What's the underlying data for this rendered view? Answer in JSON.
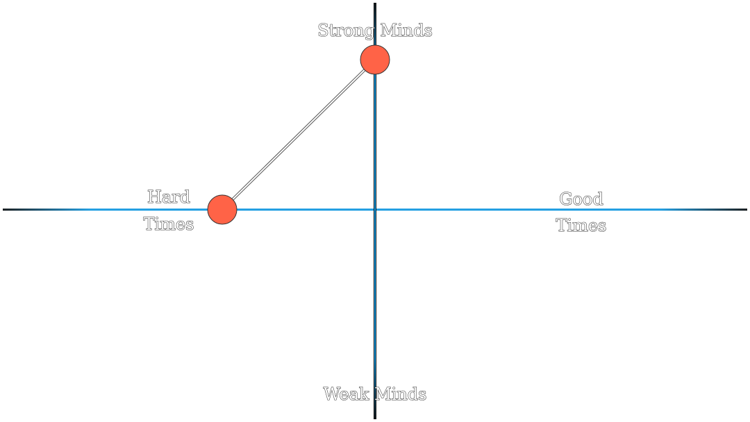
{
  "diagram": {
    "type": "quadrant",
    "labels": {
      "top": "Strong Minds",
      "bottom": "Weak Minds",
      "left": [
        "Hard",
        "Times"
      ],
      "right": [
        "Good",
        "Times"
      ]
    },
    "points": [
      {
        "x": 0,
        "y": 1
      },
      {
        "x": -1,
        "y": 0
      }
    ],
    "colors": {
      "axis_core": "#111111",
      "axis_glow": "#1a9be0",
      "point_fill": "#ff6347",
      "point_stroke": "#333333",
      "connector": "#555555",
      "text_fill": "#ffffff",
      "text_outline": "#333333"
    }
  }
}
